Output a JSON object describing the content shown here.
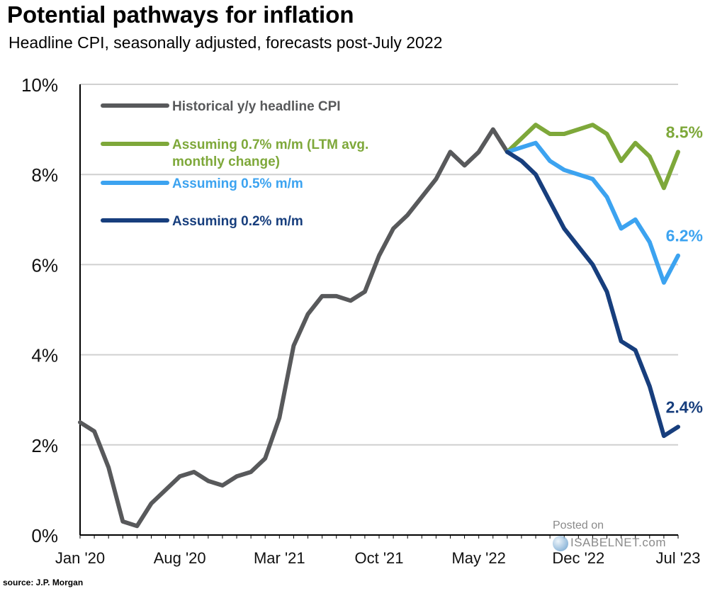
{
  "title": "Potential pathways for inflation",
  "subtitle": "Headline CPI, seasonally adjusted, forecasts post-July 2022",
  "source": "source: J.P. Morgan",
  "watermark": {
    "line1": "Posted on",
    "line2": "ISABELNET.com"
  },
  "chart_data": {
    "type": "line",
    "ylim": [
      0,
      10
    ],
    "yticks": [
      0,
      2,
      4,
      6,
      8,
      10
    ],
    "ytick_labels": [
      "0%",
      "2%",
      "4%",
      "6%",
      "8%",
      "10%"
    ],
    "xticks": [
      {
        "label": "Jan '20",
        "index": 0
      },
      {
        "label": "Aug '20",
        "index": 7
      },
      {
        "label": "Mar '21",
        "index": 14
      },
      {
        "label": "Oct '21",
        "index": 21
      },
      {
        "label": "May '22",
        "index": 28
      },
      {
        "label": "Dec '22",
        "index": 35
      },
      {
        "label": "Jul '23",
        "index": 42
      }
    ],
    "grid": true,
    "series": [
      {
        "name": "Historical y/y headline CPI",
        "color": "#58595b",
        "start_index": 0,
        "values": [
          2.5,
          2.3,
          1.5,
          0.3,
          0.2,
          0.7,
          1.0,
          1.3,
          1.4,
          1.2,
          1.1,
          1.3,
          1.4,
          1.7,
          2.6,
          4.2,
          4.9,
          5.3,
          5.3,
          5.2,
          5.4,
          6.2,
          6.8,
          7.1,
          7.5,
          7.9,
          8.5,
          8.2,
          8.5,
          9.0,
          8.5
        ]
      },
      {
        "name": "Assuming 0.7% m/m (LTM avg. monthly change)",
        "color": "#7ea83a",
        "start_index": 30,
        "values": [
          8.5,
          8.8,
          9.1,
          8.9,
          8.9,
          9.0,
          9.1,
          8.9,
          8.3,
          8.7,
          8.4,
          7.7,
          8.5
        ],
        "end_label": "8.5%"
      },
      {
        "name": "Assuming 0.5% m/m",
        "color": "#3ca3f0",
        "start_index": 30,
        "values": [
          8.5,
          8.6,
          8.7,
          8.3,
          8.1,
          8.0,
          7.9,
          7.5,
          6.8,
          7.0,
          6.5,
          5.6,
          6.2
        ],
        "end_label": "6.2%"
      },
      {
        "name": "Assuming 0.2% m/m",
        "color": "#173e7d",
        "start_index": 30,
        "values": [
          8.5,
          8.3,
          8.0,
          7.4,
          6.8,
          6.4,
          6.0,
          5.4,
          4.3,
          4.1,
          3.3,
          2.2,
          2.4
        ],
        "end_label": "2.4%"
      }
    ],
    "legend": [
      {
        "label": "Historical y/y headline CPI",
        "lines": [
          "Historical y/y headline CPI"
        ],
        "color": "#58595b",
        "text_color": "#58595b"
      },
      {
        "label": "Assuming 0.7% m/m (LTM avg. monthly change)",
        "lines": [
          "Assuming 0.7% m/m (LTM avg.",
          "monthly change)"
        ],
        "color": "#7ea83a",
        "text_color": "#7ea83a"
      },
      {
        "label": "Assuming 0.5% m/m",
        "lines": [
          "Assuming 0.5% m/m"
        ],
        "color": "#3ca3f0",
        "text_color": "#3ca3f0"
      },
      {
        "label": "Assuming 0.2% m/m",
        "lines": [
          "Assuming 0.2% m/m"
        ],
        "color": "#173e7d",
        "text_color": "#173e7d"
      }
    ],
    "legend_position": "top-left"
  }
}
